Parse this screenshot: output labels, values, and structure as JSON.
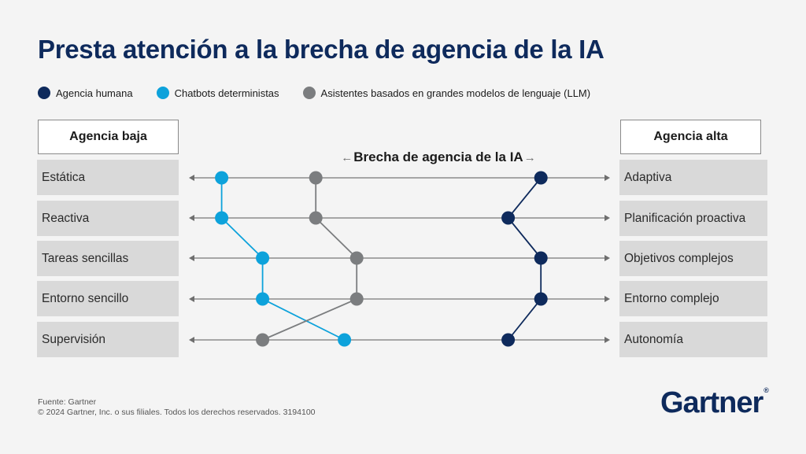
{
  "title": "Presta atención a la brecha de agencia de la IA",
  "legend": [
    {
      "label": "Agencia humana",
      "color": "#0e2a5c"
    },
    {
      "label": "Chatbots deterministas",
      "color": "#0da2db"
    },
    {
      "label": "Asistentes basados en grandes modelos de lenguaje (LLM)",
      "color": "#7b7d7f"
    }
  ],
  "header_left": "Agencia baja",
  "header_right": "Agencia alta",
  "gap_label": "Brecha de agencia de la IA",
  "gap_arrow_left": "←",
  "gap_arrow_right": "→",
  "chart_data": {
    "type": "line",
    "title": "Presta atención a la brecha de agencia de la IA",
    "x_scale": "agency position from low (0) to high (1)",
    "xlim": [
      0,
      1
    ],
    "categories_low": [
      "Estática",
      "Reactiva",
      "Tareas sencillas",
      "Entorno sencillo",
      "Supervisión"
    ],
    "categories_high": [
      "Adaptiva",
      "Planificación proactiva",
      "Objetivos complejos",
      "Entorno complejo",
      "Autonomía"
    ],
    "series": [
      {
        "name": "Chatbots deterministas",
        "color": "#0da2db",
        "values": [
          0.08,
          0.08,
          0.18,
          0.18,
          0.38
        ]
      },
      {
        "name": "Asistentes basados en grandes modelos de lenguaje (LLM)",
        "color": "#7b7d7f",
        "values": [
          0.31,
          0.31,
          0.41,
          0.41,
          0.18
        ]
      },
      {
        "name": "Agencia humana",
        "color": "#0e2a5c",
        "values": [
          0.86,
          0.78,
          0.86,
          0.86,
          0.78
        ]
      }
    ]
  },
  "footer_source": "Fuente: Gartner",
  "footer_copyright": "© 2024 Gartner, Inc. o sus filiales. Todos los derechos reservados. 3194100",
  "logo_text": "Gartner",
  "logo_mark": "®"
}
